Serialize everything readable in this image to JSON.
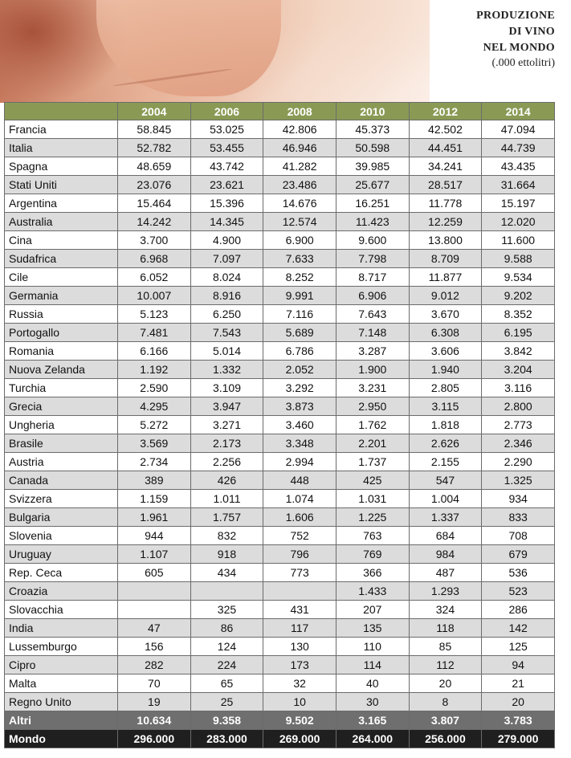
{
  "title": {
    "lines": [
      "PRODUZIONE",
      "DI VINO",
      "NEL MONDO"
    ],
    "subtitle": "(.000 ettolitri)"
  },
  "table": {
    "years": [
      "2004",
      "2006",
      "2008",
      "2010",
      "2012",
      "2014"
    ],
    "rows": [
      {
        "country": "Francia",
        "values": [
          "58.845",
          "53.025",
          "42.806",
          "45.373",
          "42.502",
          "47.094"
        ]
      },
      {
        "country": "Italia",
        "values": [
          "52.782",
          "53.455",
          "46.946",
          "50.598",
          "44.451",
          "44.739"
        ]
      },
      {
        "country": "Spagna",
        "values": [
          "48.659",
          "43.742",
          "41.282",
          "39.985",
          "34.241",
          "43.435"
        ]
      },
      {
        "country": "Stati Uniti",
        "values": [
          "23.076",
          "23.621",
          "23.486",
          "25.677",
          "28.517",
          "31.664"
        ]
      },
      {
        "country": "Argentina",
        "values": [
          "15.464",
          "15.396",
          "14.676",
          "16.251",
          "11.778",
          "15.197"
        ]
      },
      {
        "country": "Australia",
        "values": [
          "14.242",
          "14.345",
          "12.574",
          "11.423",
          "12.259",
          "12.020"
        ]
      },
      {
        "country": "Cina",
        "values": [
          "3.700",
          "4.900",
          "6.900",
          "9.600",
          "13.800",
          "11.600"
        ]
      },
      {
        "country": "Sudafrica",
        "values": [
          "6.968",
          "7.097",
          "7.633",
          "7.798",
          "8.709",
          "9.588"
        ]
      },
      {
        "country": "Cile",
        "values": [
          "6.052",
          "8.024",
          "8.252",
          "8.717",
          "11.877",
          "9.534"
        ]
      },
      {
        "country": "Germania",
        "values": [
          "10.007",
          "8.916",
          "9.991",
          "6.906",
          "9.012",
          "9.202"
        ]
      },
      {
        "country": "Russia",
        "values": [
          "5.123",
          "6.250",
          "7.116",
          "7.643",
          "3.670",
          "8.352"
        ]
      },
      {
        "country": "Portogallo",
        "values": [
          "7.481",
          "7.543",
          "5.689",
          "7.148",
          "6.308",
          "6.195"
        ]
      },
      {
        "country": "Romania",
        "values": [
          "6.166",
          "5.014",
          "6.786",
          "3.287",
          "3.606",
          "3.842"
        ]
      },
      {
        "country": "Nuova Zelanda",
        "values": [
          "1.192",
          "1.332",
          "2.052",
          "1.900",
          "1.940",
          "3.204"
        ]
      },
      {
        "country": "Turchia",
        "values": [
          "2.590",
          "3.109",
          "3.292",
          "3.231",
          "2.805",
          "3.116"
        ]
      },
      {
        "country": "Grecia",
        "values": [
          "4.295",
          "3.947",
          "3.873",
          "2.950",
          "3.115",
          "2.800"
        ]
      },
      {
        "country": "Ungheria",
        "values": [
          "5.272",
          "3.271",
          "3.460",
          "1.762",
          "1.818",
          "2.773"
        ]
      },
      {
        "country": "Brasile",
        "values": [
          "3.569",
          "2.173",
          "3.348",
          "2.201",
          "2.626",
          "2.346"
        ]
      },
      {
        "country": "Austria",
        "values": [
          "2.734",
          "2.256",
          "2.994",
          "1.737",
          "2.155",
          "2.290"
        ]
      },
      {
        "country": "Canada",
        "values": [
          "389",
          "426",
          "448",
          "425",
          "547",
          "1.325"
        ]
      },
      {
        "country": "Svizzera",
        "values": [
          "1.159",
          "1.011",
          "1.074",
          "1.031",
          "1.004",
          "934"
        ]
      },
      {
        "country": "Bulgaria",
        "values": [
          "1.961",
          "1.757",
          "1.606",
          "1.225",
          "1.337",
          "833"
        ]
      },
      {
        "country": "Slovenia",
        "values": [
          "944",
          "832",
          "752",
          "763",
          "684",
          "708"
        ]
      },
      {
        "country": "Uruguay",
        "values": [
          "1.107",
          "918",
          "796",
          "769",
          "984",
          "679"
        ]
      },
      {
        "country": "Rep. Ceca",
        "values": [
          "605",
          "434",
          "773",
          "366",
          "487",
          "536"
        ]
      },
      {
        "country": "Croazia",
        "values": [
          "",
          "",
          "",
          "1.433",
          "1.293",
          "523"
        ]
      },
      {
        "country": "Slovacchia",
        "values": [
          "",
          "325",
          "431",
          "207",
          "324",
          "286"
        ]
      },
      {
        "country": "India",
        "values": [
          "47",
          "86",
          "117",
          "135",
          "118",
          "142"
        ]
      },
      {
        "country": "Lussemburgo",
        "values": [
          "156",
          "124",
          "130",
          "110",
          "85",
          "125"
        ]
      },
      {
        "country": "Cipro",
        "values": [
          "282",
          "224",
          "173",
          "114",
          "112",
          "94"
        ]
      },
      {
        "country": "Malta",
        "values": [
          "70",
          "65",
          "32",
          "40",
          "20",
          "21"
        ]
      },
      {
        "country": "Regno Unito",
        "values": [
          "19",
          "25",
          "10",
          "30",
          "8",
          "20"
        ]
      }
    ],
    "altri": {
      "country": "Altri",
      "values": [
        "10.634",
        "9.358",
        "9.502",
        "3.165",
        "3.807",
        "3.783"
      ]
    },
    "mondo": {
      "country": "Mondo",
      "values": [
        "296.000",
        "283.000",
        "269.000",
        "264.000",
        "256.000",
        "279.000"
      ]
    }
  },
  "colors": {
    "header_green": "#8a9a55",
    "altri_gray": "#6f6f6f",
    "mondo_black": "#1f1f1f",
    "stripe_gray": "#dcdcdc"
  }
}
